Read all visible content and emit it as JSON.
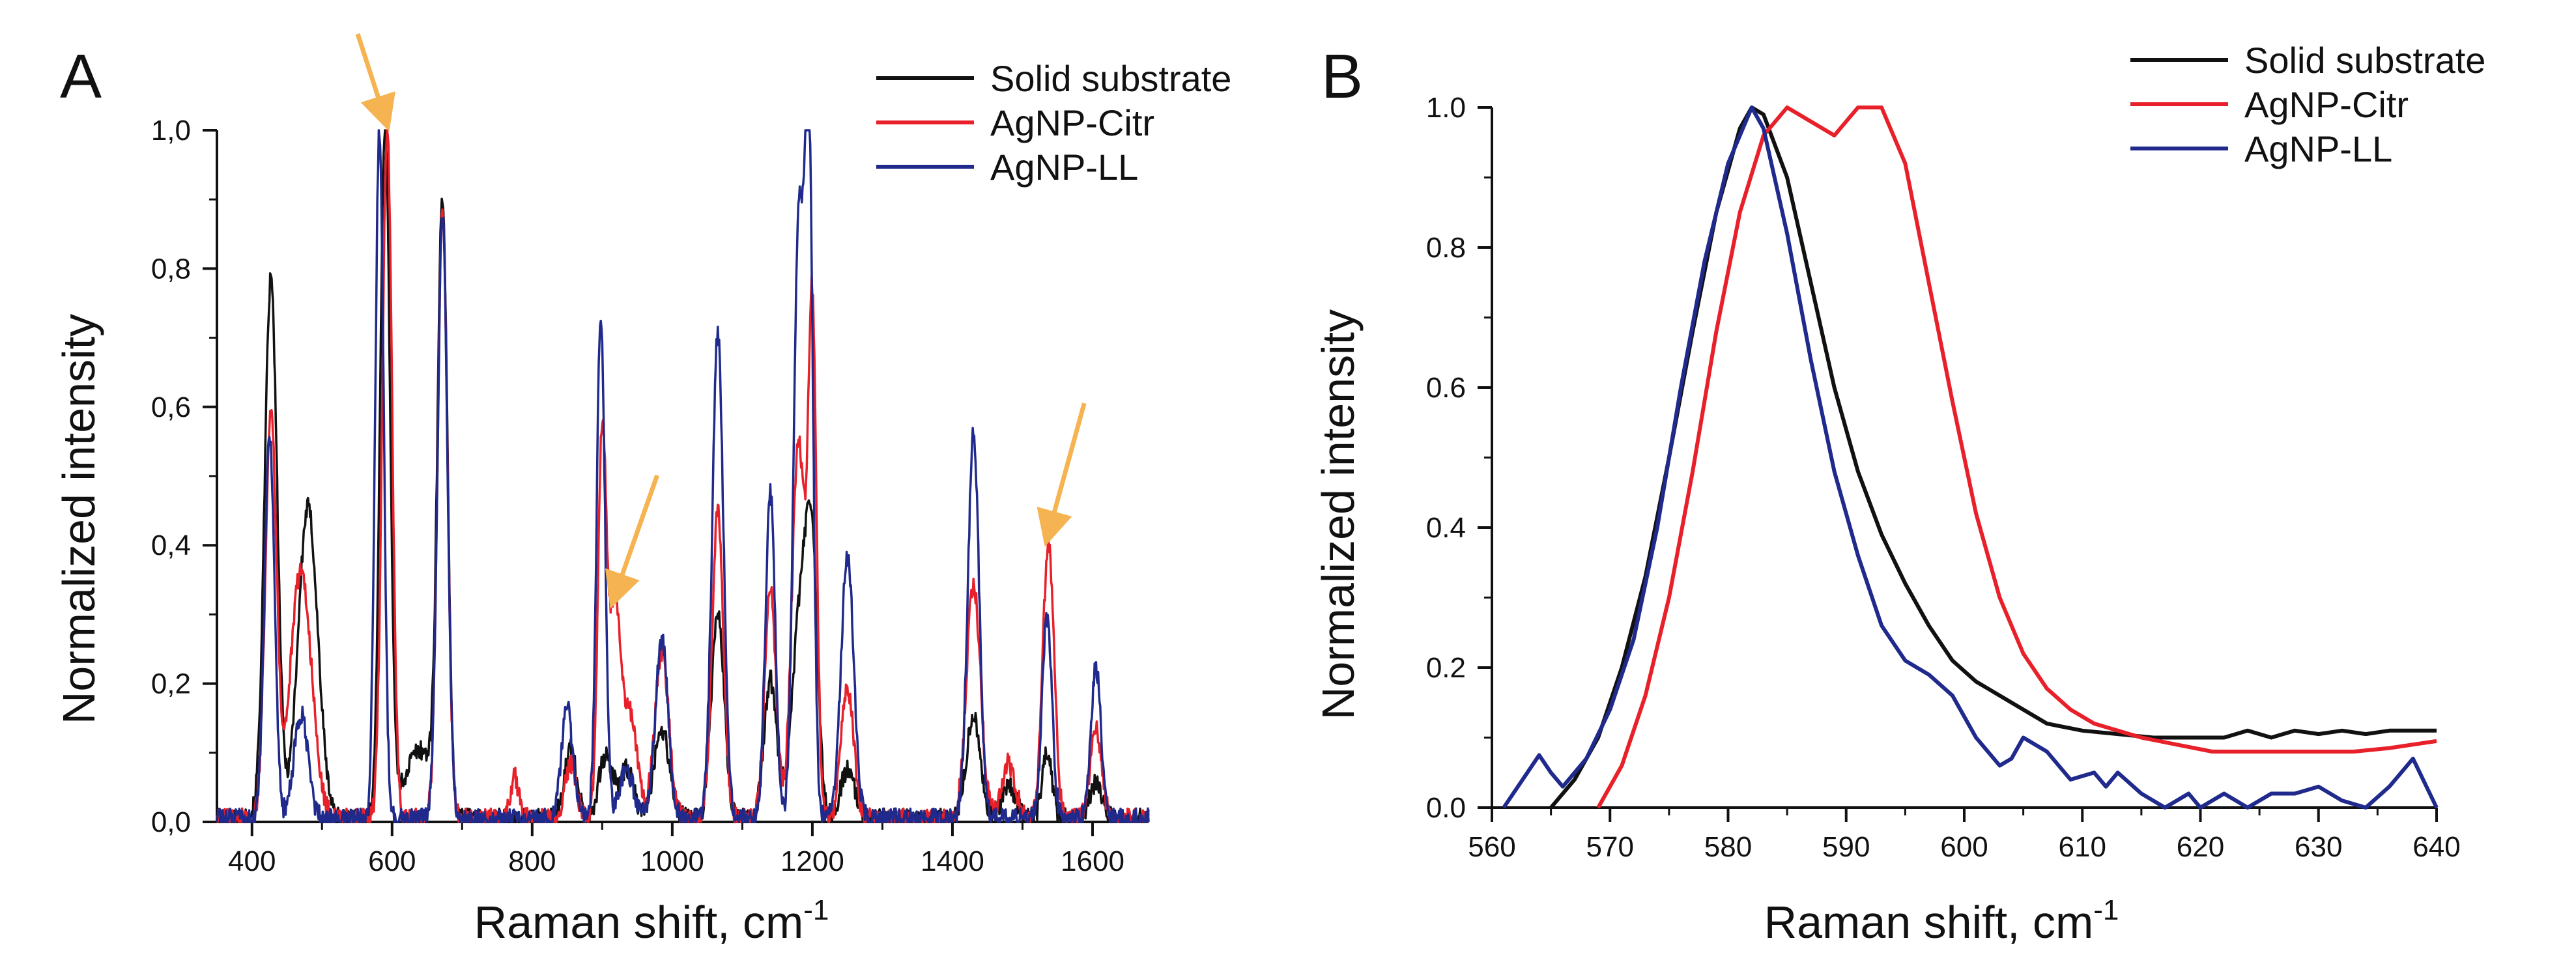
{
  "colors": {
    "solid": "#111111",
    "citr": "#e8202a",
    "ll": "#1f2a8c",
    "arrow": "#f6b352"
  },
  "chart_data": [
    {
      "type": "line",
      "panel_label": "A",
      "xlabel": "Raman shift, cm",
      "xlabel_sup": "-1",
      "ylabel": "Normalized intensity",
      "xlim": [
        350,
        1680
      ],
      "ylim": [
        0,
        1.0
      ],
      "x_ticks": [
        "400",
        "600",
        "800",
        "1000",
        "1200",
        "1400",
        "1600"
      ],
      "y_ticks": [
        "0,0",
        "0,2",
        "0,4",
        "0,6",
        "0,8",
        "1,0"
      ],
      "legend": [
        "Solid substrate",
        "AgNP-Citr",
        "AgNP-LL"
      ],
      "series": [
        {
          "name": "Solid substrate",
          "color_key": "solid",
          "peaks": [
            [
              427,
              0.78,
              9
            ],
            [
              480,
              0.45,
              14
            ],
            [
              590,
              1.0,
              7
            ],
            [
              640,
              0.1,
              22
            ],
            [
              672,
              0.87,
              7
            ],
            [
              855,
              0.1,
              9
            ],
            [
              905,
              0.09,
              10
            ],
            [
              935,
              0.07,
              10
            ],
            [
              985,
              0.13,
              11
            ],
            [
              1065,
              0.3,
              9
            ],
            [
              1140,
              0.2,
              9
            ],
            [
              1185,
              0.32,
              13
            ],
            [
              1200,
              0.27,
              8
            ],
            [
              1250,
              0.07,
              10
            ],
            [
              1430,
              0.15,
              10
            ],
            [
              1480,
              0.05,
              10
            ],
            [
              1535,
              0.1,
              7
            ],
            [
              1605,
              0.05,
              9
            ]
          ]
        },
        {
          "name": "AgNP-Citr",
          "color_key": "citr",
          "peaks": [
            [
              427,
              0.59,
              8
            ],
            [
              470,
              0.36,
              15
            ],
            [
              593,
              1.0,
              7
            ],
            [
              672,
              0.88,
              7
            ],
            [
              775,
              0.06,
              6
            ],
            [
              855,
              0.08,
              8
            ],
            [
              900,
              0.56,
              6
            ],
            [
              918,
              0.31,
              8
            ],
            [
              940,
              0.15,
              10
            ],
            [
              985,
              0.24,
              10
            ],
            [
              1065,
              0.45,
              8
            ],
            [
              1140,
              0.33,
              8
            ],
            [
              1180,
              0.55,
              9
            ],
            [
              1200,
              0.72,
              6
            ],
            [
              1250,
              0.19,
              9
            ],
            [
              1430,
              0.34,
              10
            ],
            [
              1480,
              0.08,
              10
            ],
            [
              1537,
              0.4,
              8
            ],
            [
              1605,
              0.13,
              8
            ]
          ]
        },
        {
          "name": "AgNP-LL",
          "color_key": "ll",
          "peaks": [
            [
              425,
              0.56,
              7
            ],
            [
              470,
              0.15,
              10
            ],
            [
              582,
              1.0,
              6
            ],
            [
              672,
              0.87,
              7
            ],
            [
              850,
              0.16,
              8
            ],
            [
              898,
              0.73,
              6
            ],
            [
              935,
              0.07,
              10
            ],
            [
              985,
              0.26,
              9
            ],
            [
              1065,
              0.7,
              8
            ],
            [
              1140,
              0.47,
              7
            ],
            [
              1180,
              0.84,
              7
            ],
            [
              1195,
              0.98,
              6
            ],
            [
              1250,
              0.38,
              9
            ],
            [
              1430,
              0.56,
              8
            ],
            [
              1535,
              0.29,
              7
            ],
            [
              1605,
              0.22,
              7
            ]
          ]
        }
      ],
      "annotations": [
        "arrow-590",
        "arrow-918",
        "arrow-1537"
      ]
    },
    {
      "type": "line",
      "panel_label": "B",
      "xlabel": "Raman shift, cm",
      "xlabel_sup": "-1",
      "ylabel": "Normalized intensity",
      "xlim": [
        560,
        640
      ],
      "ylim": [
        0,
        1.0
      ],
      "x_ticks": [
        "560",
        "570",
        "580",
        "590",
        "600",
        "610",
        "620",
        "630",
        "640"
      ],
      "y_ticks": [
        "0.0",
        "0.2",
        "0.4",
        "0.6",
        "0.8",
        "1.0"
      ],
      "legend": [
        "Solid substrate",
        "AgNP-Citr",
        "AgNP-LL"
      ],
      "series": [
        {
          "name": "Solid substrate",
          "color_key": "solid",
          "points": [
            [
              565,
              0.0
            ],
            [
              567,
              0.04
            ],
            [
              569,
              0.1
            ],
            [
              571,
              0.2
            ],
            [
              573,
              0.33
            ],
            [
              575,
              0.5
            ],
            [
              577,
              0.68
            ],
            [
              579,
              0.85
            ],
            [
              581,
              0.97
            ],
            [
              582,
              1.0
            ],
            [
              583,
              0.99
            ],
            [
              585,
              0.9
            ],
            [
              587,
              0.75
            ],
            [
              589,
              0.6
            ],
            [
              591,
              0.48
            ],
            [
              593,
              0.39
            ],
            [
              595,
              0.32
            ],
            [
              597,
              0.26
            ],
            [
              599,
              0.21
            ],
            [
              601,
              0.18
            ],
            [
              603,
              0.16
            ],
            [
              605,
              0.14
            ],
            [
              607,
              0.12
            ],
            [
              610,
              0.11
            ],
            [
              613,
              0.105
            ],
            [
              616,
              0.1
            ],
            [
              619,
              0.1
            ],
            [
              622,
              0.1
            ],
            [
              624,
              0.11
            ],
            [
              626,
              0.1
            ],
            [
              628,
              0.11
            ],
            [
              630,
              0.105
            ],
            [
              632,
              0.11
            ],
            [
              634,
              0.105
            ],
            [
              636,
              0.11
            ],
            [
              640,
              0.11
            ]
          ]
        },
        {
          "name": "AgNP-Citr",
          "color_key": "citr",
          "points": [
            [
              569,
              0.0
            ],
            [
              571,
              0.06
            ],
            [
              573,
              0.16
            ],
            [
              575,
              0.3
            ],
            [
              577,
              0.48
            ],
            [
              579,
              0.68
            ],
            [
              581,
              0.85
            ],
            [
              583,
              0.96
            ],
            [
              585,
              1.0
            ],
            [
              587,
              0.98
            ],
            [
              589,
              0.96
            ],
            [
              591,
              1.0
            ],
            [
              593,
              1.0
            ],
            [
              595,
              0.92
            ],
            [
              597,
              0.75
            ],
            [
              599,
              0.58
            ],
            [
              601,
              0.42
            ],
            [
              603,
              0.3
            ],
            [
              605,
              0.22
            ],
            [
              607,
              0.17
            ],
            [
              609,
              0.14
            ],
            [
              611,
              0.12
            ],
            [
              613,
              0.11
            ],
            [
              615,
              0.1
            ],
            [
              618,
              0.09
            ],
            [
              621,
              0.08
            ],
            [
              624,
              0.08
            ],
            [
              627,
              0.08
            ],
            [
              630,
              0.08
            ],
            [
              633,
              0.08
            ],
            [
              636,
              0.085
            ],
            [
              640,
              0.095
            ]
          ]
        },
        {
          "name": "AgNP-LL",
          "color_key": "ll",
          "points": [
            [
              561,
              0.0
            ],
            [
              563,
              0.05
            ],
            [
              564,
              0.075
            ],
            [
              565,
              0.05
            ],
            [
              566,
              0.03
            ],
            [
              568,
              0.07
            ],
            [
              570,
              0.14
            ],
            [
              572,
              0.24
            ],
            [
              574,
              0.4
            ],
            [
              576,
              0.6
            ],
            [
              578,
              0.78
            ],
            [
              580,
              0.92
            ],
            [
              582,
              1.0
            ],
            [
              583,
              0.97
            ],
            [
              585,
              0.82
            ],
            [
              587,
              0.64
            ],
            [
              589,
              0.48
            ],
            [
              591,
              0.36
            ],
            [
              593,
              0.26
            ],
            [
              595,
              0.21
            ],
            [
              597,
              0.19
            ],
            [
              599,
              0.16
            ],
            [
              601,
              0.1
            ],
            [
              603,
              0.06
            ],
            [
              604,
              0.07
            ],
            [
              605,
              0.1
            ],
            [
              607,
              0.08
            ],
            [
              609,
              0.04
            ],
            [
              611,
              0.05
            ],
            [
              612,
              0.03
            ],
            [
              613,
              0.05
            ],
            [
              615,
              0.02
            ],
            [
              617,
              0.0
            ],
            [
              619,
              0.02
            ],
            [
              620,
              0.0
            ],
            [
              622,
              0.02
            ],
            [
              624,
              0.0
            ],
            [
              626,
              0.02
            ],
            [
              628,
              0.02
            ],
            [
              630,
              0.03
            ],
            [
              632,
              0.01
            ],
            [
              634,
              0.0
            ],
            [
              636,
              0.03
            ],
            [
              638,
              0.07
            ],
            [
              640,
              0.0
            ]
          ]
        }
      ]
    }
  ]
}
